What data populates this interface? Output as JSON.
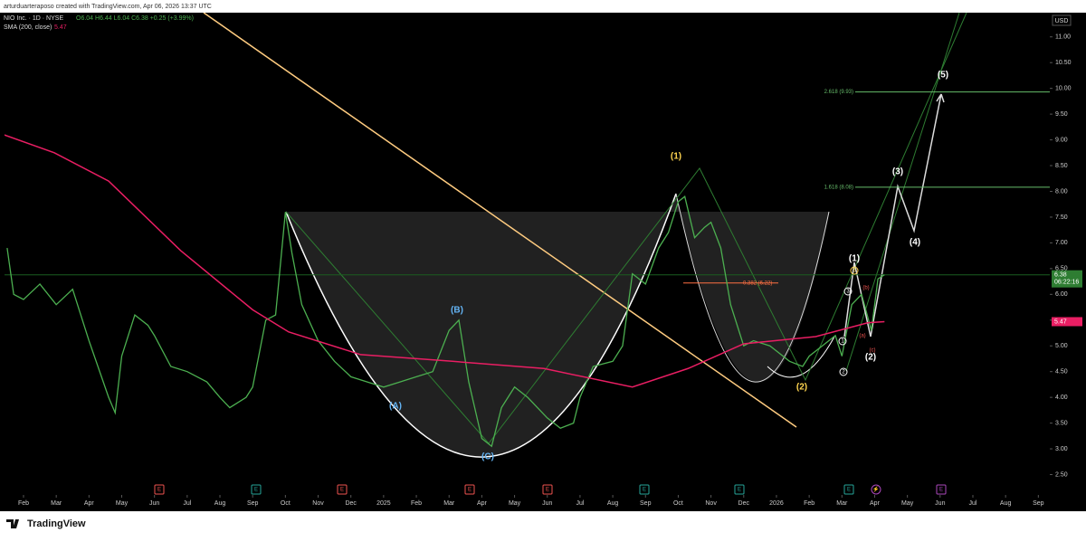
{
  "header": {
    "credit": "arturduarteraposo created with TradingView.com, Apr 06, 2026 13:37 UTC",
    "symbol": "NIO Inc. · 1D · NYSE",
    "ohlc": "O6.04 H6.44 L6.04 C6.38 +0.25 (+3.99%)",
    "indicator": "SMA (200, close)",
    "indicator_value": "5.47"
  },
  "footer": {
    "brand": "TradingView"
  },
  "chart_data": {
    "type": "line",
    "x": [
      -0.5,
      -0.3,
      0,
      0.5,
      1,
      1.5,
      2,
      2.6,
      2.8,
      3,
      3.4,
      3.8,
      4,
      4.5,
      5,
      5.6,
      6,
      6.3,
      6.8,
      7,
      7.4,
      7.7,
      8,
      8.2,
      8.5,
      9,
      9.5,
      10,
      10.5,
      11,
      11.5,
      12,
      12.5,
      13,
      13.3,
      13.6,
      14,
      14.3,
      14.6,
      15,
      15.4,
      16,
      16.4,
      16.8,
      17,
      17.4,
      18,
      18.3,
      18.6,
      19,
      19.4,
      19.7,
      20,
      20.2,
      20.5,
      20.8,
      21,
      21.3,
      21.6,
      22,
      22.3,
      22.8,
      23,
      23.4,
      23.8,
      24,
      24.4,
      24.8,
      25,
      25.3,
      25.6,
      25.9,
      26.1,
      26.3
    ],
    "series": [
      {
        "name": "NIO Inc.",
        "color": "#4caf50",
        "values": [
          6.9,
          6.0,
          5.9,
          6.2,
          5.8,
          6.1,
          5.1,
          4.0,
          3.7,
          4.8,
          5.6,
          5.4,
          5.2,
          4.6,
          4.5,
          4.3,
          4.0,
          3.8,
          4.0,
          4.2,
          5.5,
          5.6,
          7.6,
          6.8,
          5.8,
          5.1,
          4.7,
          4.4,
          4.3,
          4.2,
          4.3,
          4.4,
          4.5,
          5.3,
          5.5,
          4.3,
          3.2,
          3.05,
          3.8,
          4.2,
          4.0,
          3.6,
          3.4,
          3.5,
          4.0,
          4.6,
          4.7,
          5.0,
          6.4,
          6.2,
          6.9,
          7.2,
          7.8,
          7.9,
          7.1,
          7.3,
          7.4,
          6.9,
          5.8,
          5.0,
          5.1,
          5.0,
          4.9,
          4.7,
          4.6,
          4.8,
          5.0,
          5.2,
          4.8,
          5.8,
          6.0,
          5.3,
          6.3,
          6.38
        ]
      },
      {
        "name": "SMA (200, close)",
        "color": "#e91e63",
        "x": [
          -0.6,
          0.94,
          2.6,
          4.8,
          7.0,
          8.1,
          10.3,
          13.1,
          15.9,
          18.6,
          20.3,
          22.0,
          24.2,
          25.8,
          26.3
        ],
        "values": [
          9.1,
          8.75,
          8.2,
          6.85,
          5.7,
          5.27,
          4.83,
          4.7,
          4.56,
          4.2,
          4.56,
          5.04,
          5.18,
          5.45,
          5.47
        ]
      }
    ],
    "xlim": [
      -0.58,
      31.35
    ],
    "ylim": [
      2.14,
      11.47
    ],
    "xticks": [
      {
        "value": 0,
        "label": "Feb"
      },
      {
        "value": 1,
        "label": "Mar"
      },
      {
        "value": 2,
        "label": "Apr"
      },
      {
        "value": 3,
        "label": "May"
      },
      {
        "value": 4,
        "label": "Jun"
      },
      {
        "value": 5,
        "label": "Jul"
      },
      {
        "value": 6,
        "label": "Aug"
      },
      {
        "value": 7,
        "label": "Sep"
      },
      {
        "value": 8,
        "label": "Oct"
      },
      {
        "value": 9,
        "label": "Nov"
      },
      {
        "value": 10,
        "label": "Dec"
      },
      {
        "value": 11,
        "label": "2025"
      },
      {
        "value": 12,
        "label": "Feb"
      },
      {
        "value": 13,
        "label": "Mar"
      },
      {
        "value": 14,
        "label": "Apr"
      },
      {
        "value": 15,
        "label": "May"
      },
      {
        "value": 16,
        "label": "Jun"
      },
      {
        "value": 17,
        "label": "Jul"
      },
      {
        "value": 18,
        "label": "Aug"
      },
      {
        "value": 19,
        "label": "Sep"
      },
      {
        "value": 20,
        "label": "Oct"
      },
      {
        "value": 21,
        "label": "Nov"
      },
      {
        "value": 22,
        "label": "Dec"
      },
      {
        "value": 23,
        "label": "2026"
      },
      {
        "value": 24,
        "label": "Feb"
      },
      {
        "value": 25,
        "label": "Mar"
      },
      {
        "value": 26,
        "label": "Apr"
      },
      {
        "value": 27,
        "label": "May"
      },
      {
        "value": 28,
        "label": "Jun"
      },
      {
        "value": 29,
        "label": "Jul"
      },
      {
        "value": 30,
        "label": "Aug"
      },
      {
        "value": 31,
        "label": "Sep"
      }
    ],
    "yticks": [
      {
        "value": 2.5,
        "label": "2.50"
      },
      {
        "value": 3,
        "label": "3.00"
      },
      {
        "value": 3.5,
        "label": "3.50"
      },
      {
        "value": 4,
        "label": "4.00"
      },
      {
        "value": 4.5,
        "label": "4.50"
      },
      {
        "value": 5,
        "label": "5.00"
      },
      {
        "value": 5.5,
        "label": "5.50"
      },
      {
        "value": 6,
        "label": "6.00"
      },
      {
        "value": 6.5,
        "label": "6.50"
      },
      {
        "value": 7,
        "label": "7.00"
      },
      {
        "value": 7.5,
        "label": "7.50"
      },
      {
        "value": 8,
        "label": "8.00"
      },
      {
        "value": 8.5,
        "label": "8.50"
      },
      {
        "value": 9,
        "label": "9.00"
      },
      {
        "value": 9.5,
        "label": "9.50"
      },
      {
        "value": 10,
        "label": "10.00"
      },
      {
        "value": 10.5,
        "label": "10.50"
      },
      {
        "value": 11,
        "label": "11.00"
      }
    ],
    "currency": "USD",
    "last_price": {
      "value": 6.38,
      "label": "6.38",
      "countdown": "06:22:16"
    },
    "sma_last": {
      "value": 5.47,
      "label": "5.47"
    },
    "fib_levels": [
      {
        "value": 9.93,
        "label": "2.618 (9.93)"
      },
      {
        "value": 8.08,
        "label": "1.618 (8.08)"
      },
      {
        "value": 6.22,
        "label": "0.382 (6.22)"
      }
    ],
    "wave_labels": [
      "(1)",
      "(2)",
      "(1)",
      "(2)",
      "(3)",
      "(4)",
      "(5)",
      "(A)",
      "(B)",
      "(C)",
      "5",
      "3",
      "1",
      "2",
      "(b)",
      "(a)",
      "(c)"
    ],
    "events": [
      "E",
      "E",
      "E",
      "E",
      "E",
      "E",
      "E",
      "E",
      "⚡",
      "E"
    ]
  }
}
